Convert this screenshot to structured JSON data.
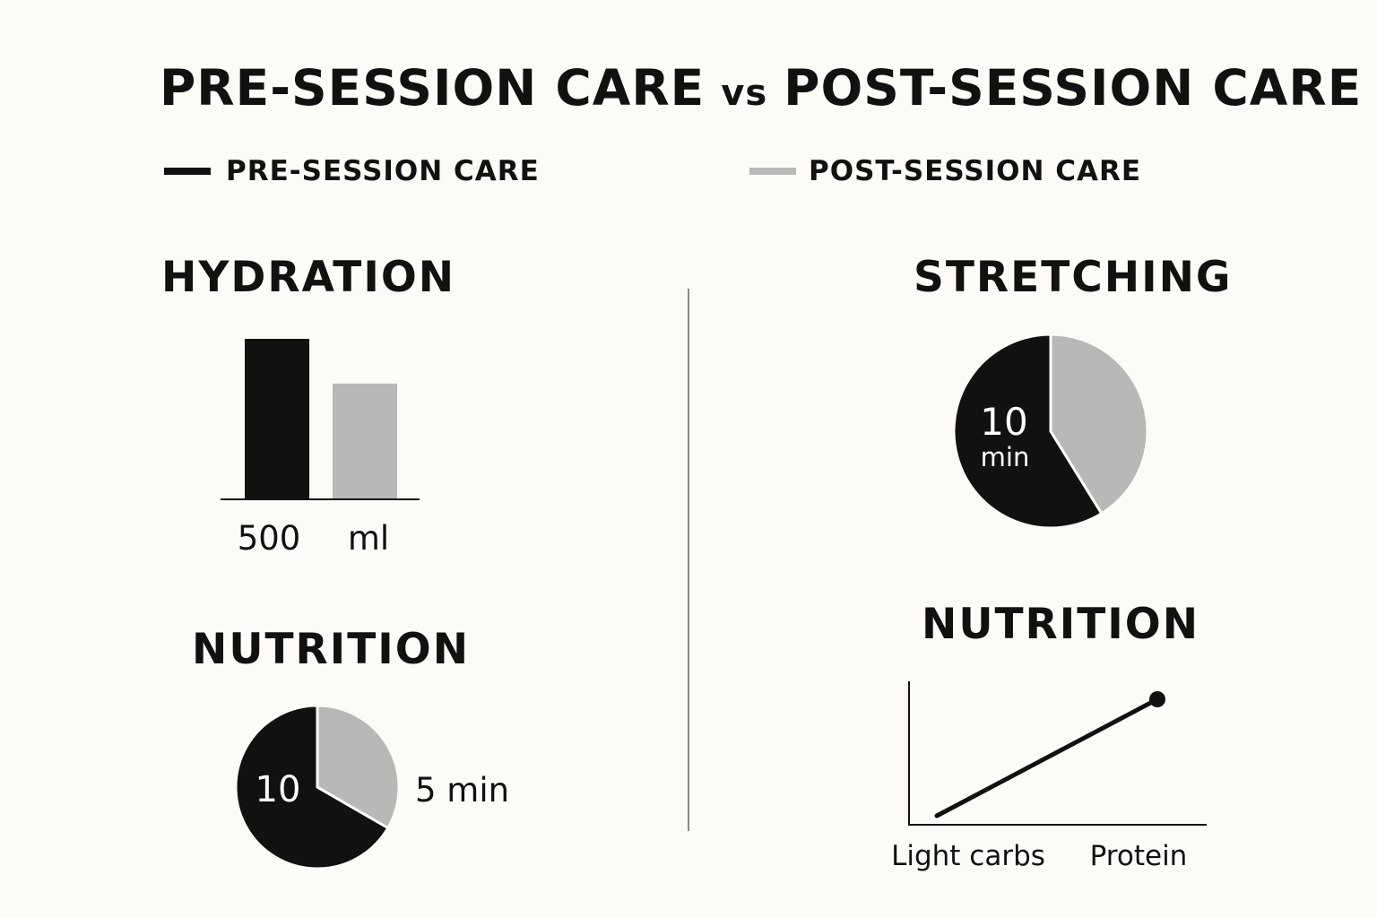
{
  "title": {
    "left": "PRE-SESSION CARE",
    "vs": "vs",
    "right": "POST-SESSION CARE"
  },
  "legend": [
    {
      "label": "PRE-SESSION CARE",
      "color": "#111111"
    },
    {
      "label": "POST-SESSION CARE",
      "color": "#b8b8b8"
    }
  ],
  "chart_data": [
    {
      "type": "bar",
      "title": "HYDRATION",
      "series": [
        {
          "name": "PRE-SESSION CARE",
          "value": 500,
          "color": "#111111"
        },
        {
          "name": "POST-SESSION CARE",
          "value": 360,
          "color": "#b8b8b8"
        }
      ],
      "tick_labels": [
        "500",
        "ml"
      ],
      "ylim": [
        0,
        500
      ]
    },
    {
      "type": "pie",
      "title": "NUTRITION",
      "slices": [
        {
          "name": "PRE-SESSION CARE",
          "value": 10,
          "color": "#111111"
        },
        {
          "name": "POST-SESSION CARE",
          "value": 5,
          "color": "#b8b8b8"
        }
      ],
      "data_labels": [
        "10",
        "5 min"
      ]
    },
    {
      "type": "pie",
      "title": "STRETCHING",
      "slices": [
        {
          "name": "PRE-SESSION CARE",
          "value": 10,
          "color": "#111111"
        },
        {
          "name": "POST-SESSION CARE",
          "value": 7,
          "color": "#b8b8b8"
        }
      ],
      "data_labels": [
        "10",
        "min"
      ]
    },
    {
      "type": "line",
      "title": "NUTRITION",
      "categories": [
        "Light carbs",
        "Protein"
      ],
      "values": [
        0,
        1
      ],
      "ylim": [
        0,
        1.1
      ],
      "color": "#111111"
    }
  ]
}
